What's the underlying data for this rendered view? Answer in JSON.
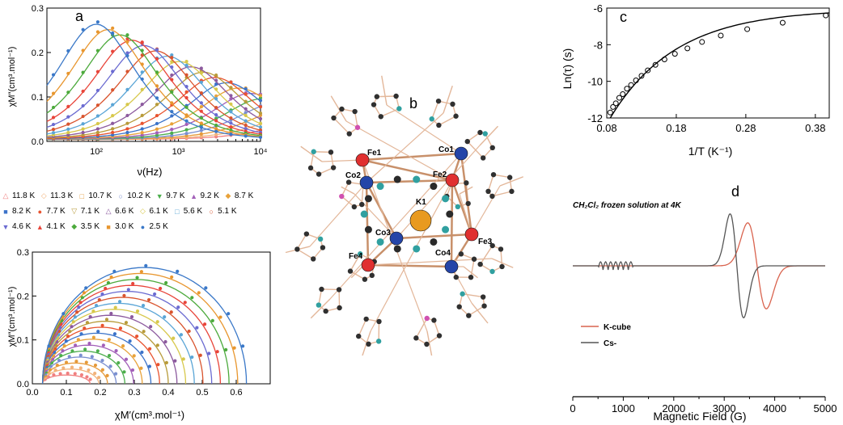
{
  "panel_labels": {
    "a": "a",
    "b": "b",
    "c": "c",
    "d": "d"
  },
  "chart_data": [
    {
      "id": "a-top",
      "type": "line",
      "xscale": "log",
      "xlabel": "ν(Hz)",
      "ylabel": "χM″(cm³.mol⁻¹)",
      "xlim": [
        25,
        10000
      ],
      "ylim": [
        0,
        0.3
      ],
      "xticks": [
        "10²",
        "10³",
        "10⁴"
      ],
      "yticks": [
        "0.0",
        "0.1",
        "0.2",
        "0.3"
      ],
      "series": [
        {
          "name": "11.8 K",
          "color": "#f08080",
          "symbol": "△",
          "T": 11.8
        },
        {
          "name": "11.3 K",
          "color": "#f2b27a",
          "symbol": "◇",
          "T": 11.3
        },
        {
          "name": "10.7 K",
          "color": "#e69a3a",
          "symbol": "□",
          "T": 10.7
        },
        {
          "name": "10.2 K",
          "color": "#7a8fd0",
          "symbol": "○",
          "T": 10.2
        },
        {
          "name": "9.7 K",
          "color": "#4cae4c",
          "symbol": "▼",
          "T": 9.7
        },
        {
          "name": "9.2 K",
          "color": "#a25fb8",
          "symbol": "▲",
          "T": 9.2
        },
        {
          "name": "8.7 K",
          "color": "#e8a23a",
          "symbol": "◆",
          "T": 8.7
        },
        {
          "name": "8.2 K",
          "color": "#3b73c9",
          "symbol": "■",
          "T": 8.2
        },
        {
          "name": "7.7 K",
          "color": "#e8532f",
          "symbol": "●",
          "T": 7.7
        },
        {
          "name": "7.1 K",
          "color": "#b89b3a",
          "symbol": "▽",
          "T": 7.1
        },
        {
          "name": "6.6 K",
          "color": "#8c5a9e",
          "symbol": "△",
          "T": 6.6
        },
        {
          "name": "6.1 K",
          "color": "#d7c84b",
          "symbol": "◇",
          "T": 6.1
        },
        {
          "name": "5.6 K",
          "color": "#5aa5d6",
          "symbol": "□",
          "T": 5.6
        },
        {
          "name": "5.1 K",
          "color": "#d9542e",
          "symbol": "○",
          "T": 5.1
        },
        {
          "name": "4.6 K",
          "color": "#6b6bd1",
          "symbol": "▼",
          "T": 4.6
        },
        {
          "name": "4.1 K",
          "color": "#e8453a",
          "symbol": "▲",
          "T": 4.1
        },
        {
          "name": "3.5 K",
          "color": "#4caa3c",
          "symbol": "◆",
          "T": 3.5
        },
        {
          "name": "3.0 K",
          "color": "#e8962e",
          "symbol": "■",
          "T": 3.0
        },
        {
          "name": "2.5 K",
          "color": "#3a78c8",
          "symbol": "●",
          "T": 2.5
        }
      ]
    },
    {
      "id": "a-bottom",
      "type": "scatter",
      "xlabel": "χM′(cm³.mol⁻¹)",
      "ylabel": "χM″(cm³.mol⁻¹)",
      "xlim": [
        0.0,
        0.7
      ],
      "ylim": [
        0,
        0.3
      ],
      "xticks": [
        "0.0",
        "0.1",
        "0.2",
        "0.3",
        "0.4",
        "0.5",
        "0.6"
      ],
      "yticks": [
        "0.0",
        "0.1",
        "0.2",
        "0.3"
      ]
    },
    {
      "id": "c",
      "type": "scatter",
      "xlabel": "1/T (K⁻¹)",
      "ylabel": "Ln(τ) (s)",
      "xlim": [
        0.08,
        0.4
      ],
      "ylim": [
        -12,
        -6
      ],
      "xticks": [
        "0.08",
        "0.18",
        "0.28",
        "0.38"
      ],
      "yticks": [
        "-12",
        "-10",
        "-8",
        "-6"
      ],
      "x": [
        0.085,
        0.089,
        0.093,
        0.098,
        0.103,
        0.109,
        0.115,
        0.122,
        0.13,
        0.139,
        0.15,
        0.163,
        0.178,
        0.196,
        0.217,
        0.244,
        0.282,
        0.333,
        0.395
      ],
      "y": [
        -11.7,
        -11.4,
        -11.2,
        -10.9,
        -10.7,
        -10.4,
        -10.2,
        -9.95,
        -9.7,
        -9.4,
        -9.1,
        -8.8,
        -8.5,
        -8.2,
        -7.85,
        -7.5,
        -7.15,
        -6.8,
        -6.4
      ]
    },
    {
      "id": "d",
      "type": "line",
      "title": "CH₂Cl₂ frozen solution at 4K",
      "xlabel": "Magnetic Field (G)",
      "xlim": [
        0,
        5000
      ],
      "xticks": [
        "0",
        "1000",
        "2000",
        "3000",
        "4000",
        "5000"
      ],
      "series": [
        {
          "name": "K-cube",
          "color": "#d9634e"
        },
        {
          "name": "Cs-",
          "color": "#555555"
        }
      ]
    }
  ],
  "structure": {
    "atoms": [
      {
        "label": "Fe1",
        "color": "#e03030"
      },
      {
        "label": "Fe2",
        "color": "#e03030"
      },
      {
        "label": "Fe3",
        "color": "#e03030"
      },
      {
        "label": "Fe4",
        "color": "#e03030"
      },
      {
        "label": "Co1",
        "color": "#2545a8"
      },
      {
        "label": "Co2",
        "color": "#2545a8"
      },
      {
        "label": "Co3",
        "color": "#2545a8"
      },
      {
        "label": "Co4",
        "color": "#2545a8"
      },
      {
        "label": "K1",
        "color": "#e89a20"
      }
    ]
  }
}
